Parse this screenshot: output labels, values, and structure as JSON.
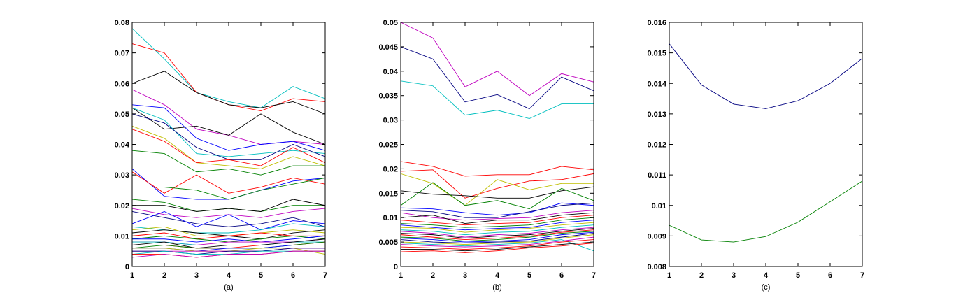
{
  "chart_data": [
    {
      "type": "line",
      "title": "",
      "xlabel": "(a)",
      "ylabel": "",
      "x": [
        1,
        2,
        3,
        4,
        5,
        6,
        7
      ],
      "xlim": [
        1,
        7
      ],
      "ylim": [
        0,
        0.08
      ],
      "xticks": [
        "1",
        "2",
        "3",
        "4",
        "5",
        "6",
        "7"
      ],
      "yticks": [
        "0",
        "0.01",
        "0.02",
        "0.03",
        "0.04",
        "0.05",
        "0.06",
        "0.07",
        "0.08"
      ],
      "grid": false,
      "series": [
        {
          "color": "#00bfbf",
          "values": [
            0.078,
            0.068,
            0.057,
            0.054,
            0.052,
            0.059,
            0.055
          ]
        },
        {
          "color": "#ff0000",
          "values": [
            0.073,
            0.07,
            0.057,
            0.053,
            0.051,
            0.055,
            0.054
          ]
        },
        {
          "color": "#000000",
          "values": [
            0.06,
            0.064,
            0.057,
            0.053,
            0.052,
            0.054,
            0.05
          ]
        },
        {
          "color": "#bf00bf",
          "values": [
            0.058,
            0.053,
            0.045,
            0.043,
            0.04,
            0.041,
            0.04
          ]
        },
        {
          "color": "#000000",
          "values": [
            0.052,
            0.045,
            0.046,
            0.043,
            0.05,
            0.044,
            0.04
          ]
        },
        {
          "color": "#0000ff",
          "values": [
            0.053,
            0.052,
            0.042,
            0.038,
            0.04,
            0.041,
            0.038
          ]
        },
        {
          "color": "#00bfbf",
          "values": [
            0.052,
            0.048,
            0.037,
            0.036,
            0.037,
            0.038,
            0.037
          ]
        },
        {
          "color": "#000080",
          "values": [
            0.05,
            0.047,
            0.039,
            0.035,
            0.035,
            0.04,
            0.036
          ]
        },
        {
          "color": "#bfbf00",
          "values": [
            0.046,
            0.042,
            0.034,
            0.033,
            0.032,
            0.036,
            0.033
          ]
        },
        {
          "color": "#ff0000",
          "values": [
            0.045,
            0.041,
            0.034,
            0.035,
            0.033,
            0.039,
            0.034
          ]
        },
        {
          "color": "#008000",
          "values": [
            0.038,
            0.037,
            0.031,
            0.032,
            0.03,
            0.033,
            0.033
          ]
        },
        {
          "color": "#0000ff",
          "values": [
            0.032,
            0.023,
            0.022,
            0.022,
            0.025,
            0.028,
            0.029
          ]
        },
        {
          "color": "#ff0000",
          "values": [
            0.031,
            0.024,
            0.03,
            0.024,
            0.026,
            0.029,
            0.027
          ]
        },
        {
          "color": "#008000",
          "values": [
            0.026,
            0.026,
            0.025,
            0.022,
            0.025,
            0.027,
            0.029
          ]
        },
        {
          "color": "#008000",
          "values": [
            0.022,
            0.021,
            0.018,
            0.019,
            0.018,
            0.02,
            0.02
          ]
        },
        {
          "color": "#000000",
          "values": [
            0.02,
            0.02,
            0.018,
            0.019,
            0.018,
            0.022,
            0.02
          ]
        },
        {
          "color": "#bf00bf",
          "values": [
            0.019,
            0.017,
            0.016,
            0.017,
            0.016,
            0.018,
            0.019
          ]
        },
        {
          "color": "#000080",
          "values": [
            0.018,
            0.016,
            0.014,
            0.013,
            0.014,
            0.016,
            0.013
          ]
        },
        {
          "color": "#0000ff",
          "values": [
            0.014,
            0.018,
            0.013,
            0.017,
            0.012,
            0.015,
            0.014
          ]
        },
        {
          "color": "#00bfbf",
          "values": [
            0.013,
            0.012,
            0.011,
            0.011,
            0.012,
            0.014,
            0.013
          ]
        },
        {
          "color": "#bfbf00",
          "values": [
            0.012,
            0.013,
            0.01,
            0.01,
            0.011,
            0.012,
            0.011
          ]
        },
        {
          "color": "#000000",
          "values": [
            0.011,
            0.012,
            0.011,
            0.01,
            0.009,
            0.011,
            0.012
          ]
        },
        {
          "color": "#ff0000",
          "values": [
            0.01,
            0.011,
            0.009,
            0.01,
            0.011,
            0.01,
            0.01
          ]
        },
        {
          "color": "#008000",
          "values": [
            0.009,
            0.01,
            0.009,
            0.008,
            0.009,
            0.01,
            0.009
          ]
        },
        {
          "color": "#0000ff",
          "values": [
            0.009,
            0.009,
            0.008,
            0.009,
            0.008,
            0.009,
            0.01
          ]
        },
        {
          "color": "#bf00bf",
          "values": [
            0.008,
            0.008,
            0.007,
            0.008,
            0.008,
            0.008,
            0.009
          ]
        },
        {
          "color": "#00bfbf",
          "values": [
            0.008,
            0.008,
            0.007,
            0.007,
            0.007,
            0.008,
            0.008
          ]
        },
        {
          "color": "#000000",
          "values": [
            0.007,
            0.008,
            0.006,
            0.007,
            0.007,
            0.008,
            0.009
          ]
        },
        {
          "color": "#ff0000",
          "values": [
            0.007,
            0.007,
            0.006,
            0.006,
            0.007,
            0.007,
            0.008
          ]
        },
        {
          "color": "#008000",
          "values": [
            0.006,
            0.007,
            0.006,
            0.006,
            0.006,
            0.007,
            0.008
          ]
        },
        {
          "color": "#0000ff",
          "values": [
            0.006,
            0.006,
            0.005,
            0.006,
            0.006,
            0.007,
            0.007
          ]
        },
        {
          "color": "#bfbf00",
          "values": [
            0.006,
            0.006,
            0.005,
            0.005,
            0.006,
            0.006,
            0.004
          ]
        },
        {
          "color": "#bf00bf",
          "values": [
            0.005,
            0.005,
            0.005,
            0.005,
            0.005,
            0.006,
            0.006
          ]
        },
        {
          "color": "#000080",
          "values": [
            0.005,
            0.005,
            0.004,
            0.005,
            0.005,
            0.006,
            0.006
          ]
        },
        {
          "color": "#00bfbf",
          "values": [
            0.004,
            0.005,
            0.004,
            0.004,
            0.005,
            0.005,
            0.005
          ]
        },
        {
          "color": "#ff0000",
          "values": [
            0.004,
            0.004,
            0.003,
            0.004,
            0.004,
            0.005,
            0.005
          ]
        },
        {
          "color": "#bf00bf",
          "values": [
            0.003,
            0.004,
            0.003,
            0.004,
            0.004,
            0.005,
            0.005
          ]
        }
      ]
    },
    {
      "type": "line",
      "title": "",
      "xlabel": "(b)",
      "ylabel": "",
      "x": [
        1,
        2,
        3,
        4,
        5,
        6,
        7
      ],
      "xlim": [
        1,
        7
      ],
      "ylim": [
        0,
        0.05
      ],
      "xticks": [
        "1",
        "2",
        "3",
        "4",
        "5",
        "6",
        "7"
      ],
      "yticks": [
        "0",
        "0.005",
        "0.01",
        "0.015",
        "0.02",
        "0.025",
        "0.03",
        "0.035",
        "0.04",
        "0.045",
        "0.05"
      ],
      "grid": false,
      "series": [
        {
          "color": "#bf00bf",
          "values": [
            0.05,
            0.0468,
            0.0368,
            0.04,
            0.035,
            0.0395,
            0.0378
          ]
        },
        {
          "color": "#000080",
          "values": [
            0.045,
            0.0425,
            0.0337,
            0.0352,
            0.0323,
            0.0388,
            0.036
          ]
        },
        {
          "color": "#00bfbf",
          "values": [
            0.038,
            0.037,
            0.031,
            0.032,
            0.0303,
            0.0333,
            0.0333
          ]
        },
        {
          "color": "#ff0000",
          "values": [
            0.0215,
            0.0205,
            0.0185,
            0.0188,
            0.0188,
            0.0205,
            0.0198
          ]
        },
        {
          "color": "#ff0000",
          "values": [
            0.0195,
            0.0198,
            0.014,
            0.016,
            0.0175,
            0.0178,
            0.019
          ]
        },
        {
          "color": "#bfbf00",
          "values": [
            0.019,
            0.017,
            0.0125,
            0.0178,
            0.0157,
            0.017,
            0.017
          ]
        },
        {
          "color": "#000000",
          "values": [
            0.0155,
            0.0148,
            0.0145,
            0.014,
            0.014,
            0.0155,
            0.0163
          ]
        },
        {
          "color": "#008000",
          "values": [
            0.0125,
            0.0172,
            0.0125,
            0.0135,
            0.0118,
            0.016,
            0.0135
          ]
        },
        {
          "color": "#0000ff",
          "values": [
            0.012,
            0.0118,
            0.011,
            0.0105,
            0.011,
            0.013,
            0.0125
          ]
        },
        {
          "color": "#000080",
          "values": [
            0.0115,
            0.0112,
            0.01,
            0.01,
            0.0112,
            0.0125,
            0.013
          ]
        },
        {
          "color": "#bf00bf",
          "values": [
            0.011,
            0.01,
            0.0095,
            0.0098,
            0.01,
            0.011,
            0.0115
          ]
        },
        {
          "color": "#000000",
          "values": [
            0.01,
            0.0105,
            0.0088,
            0.0095,
            0.0095,
            0.0105,
            0.011
          ]
        },
        {
          "color": "#ff0000",
          "values": [
            0.0095,
            0.009,
            0.0085,
            0.0088,
            0.009,
            0.01,
            0.0105
          ]
        },
        {
          "color": "#008000",
          "values": [
            0.0088,
            0.0085,
            0.008,
            0.0082,
            0.0085,
            0.0095,
            0.01
          ]
        },
        {
          "color": "#0000ff",
          "values": [
            0.0085,
            0.008,
            0.0075,
            0.0078,
            0.008,
            0.009,
            0.0095
          ]
        },
        {
          "color": "#bfbf00",
          "values": [
            0.008,
            0.0078,
            0.007,
            0.0075,
            0.0078,
            0.0085,
            0.009
          ]
        },
        {
          "color": "#00bfbf",
          "values": [
            0.0075,
            0.0072,
            0.0065,
            0.007,
            0.0072,
            0.008,
            0.0085
          ]
        },
        {
          "color": "#bf00bf",
          "values": [
            0.0072,
            0.0068,
            0.006,
            0.0065,
            0.0068,
            0.0075,
            0.008
          ]
        },
        {
          "color": "#000000",
          "values": [
            0.0068,
            0.0065,
            0.0058,
            0.0062,
            0.0065,
            0.0072,
            0.0078
          ]
        },
        {
          "color": "#ff0000",
          "values": [
            0.0065,
            0.006,
            0.0055,
            0.0058,
            0.0062,
            0.007,
            0.0075
          ]
        },
        {
          "color": "#008000",
          "values": [
            0.006,
            0.0058,
            0.0052,
            0.0055,
            0.006,
            0.0068,
            0.0072
          ]
        },
        {
          "color": "#0000ff",
          "values": [
            0.0058,
            0.0055,
            0.005,
            0.0052,
            0.0055,
            0.0065,
            0.007
          ]
        },
        {
          "color": "#000080",
          "values": [
            0.0055,
            0.005,
            0.0048,
            0.005,
            0.0052,
            0.006,
            0.0068
          ]
        },
        {
          "color": "#bfbf00",
          "values": [
            0.005,
            0.0048,
            0.0045,
            0.0048,
            0.005,
            0.0058,
            0.0065
          ]
        },
        {
          "color": "#00bfbf",
          "values": [
            0.0048,
            0.0045,
            0.0042,
            0.0045,
            0.0048,
            0.0055,
            0.0032
          ]
        },
        {
          "color": "#bf00bf",
          "values": [
            0.0045,
            0.0042,
            0.004,
            0.0042,
            0.0045,
            0.0052,
            0.006
          ]
        },
        {
          "color": "#ff0000",
          "values": [
            0.004,
            0.0038,
            0.0035,
            0.0038,
            0.0042,
            0.005,
            0.0055
          ]
        },
        {
          "color": "#000000",
          "values": [
            0.0035,
            0.0035,
            0.0032,
            0.0035,
            0.004,
            0.0045,
            0.005
          ]
        },
        {
          "color": "#ff0000",
          "values": [
            0.003,
            0.0032,
            0.0028,
            0.0032,
            0.0038,
            0.0042,
            0.0048
          ]
        }
      ]
    },
    {
      "type": "line",
      "title": "",
      "xlabel": "(c)",
      "ylabel": "",
      "x": [
        1,
        2,
        3,
        4,
        5,
        6,
        7
      ],
      "xlim": [
        1,
        7
      ],
      "ylim": [
        0.008,
        0.016
      ],
      "xticks": [
        "1",
        "2",
        "3",
        "4",
        "5",
        "6",
        "7"
      ],
      "yticks": [
        "0.008",
        "0.009",
        "0.01",
        "0.011",
        "0.012",
        "0.013",
        "0.014",
        "0.015",
        "0.016"
      ],
      "grid": false,
      "series": [
        {
          "color": "#000080",
          "values": [
            0.0153,
            0.01395,
            0.01332,
            0.01317,
            0.01343,
            0.014,
            0.01482
          ]
        },
        {
          "color": "#008000",
          "values": [
            0.00935,
            0.00887,
            0.0088,
            0.00898,
            0.00945,
            0.01012,
            0.0108
          ]
        }
      ]
    }
  ]
}
